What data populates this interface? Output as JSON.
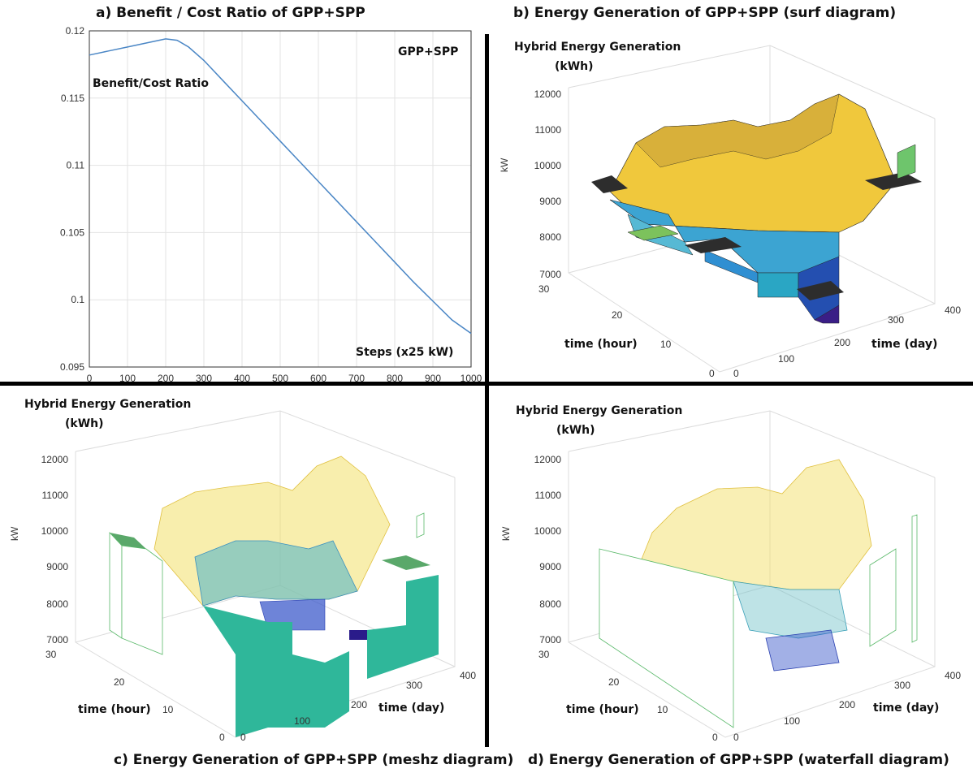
{
  "titles": {
    "a": "a) Benefit / Cost Ratio of GPP+SPP",
    "b": "b) Energy Generation of  GPP+SPP  (surf diagram)",
    "c": "c) Energy Generation of  GPP+SPP  (meshz diagram)",
    "d": "d) Energy Generation of  GPP+SPP  (waterfall diagram)"
  },
  "colors": {
    "line": "#4a86c5",
    "grid": "#e3e3e3",
    "yellow": "#f5d030",
    "green": "#5ab96a",
    "teal": "#2fb79a",
    "blue": "#2f6fd0",
    "navy": "#2a1b8a"
  },
  "chart_data": [
    {
      "id": "a",
      "type": "line",
      "legend_text": "GPP+SPP",
      "annotation": "Benefit/Cost Ratio",
      "xlabel": "Steps (x25 kW)",
      "xlim": [
        0,
        1000
      ],
      "ylim": [
        0.095,
        0.12
      ],
      "xticks": [
        "0",
        "100",
        "200",
        "300",
        "400",
        "500",
        "600",
        "700",
        "800",
        "900",
        "1000"
      ],
      "yticks": [
        "0.095",
        "0.1",
        "0.105",
        "0.11",
        "0.115",
        "0.12"
      ],
      "grid": true,
      "x": [
        0,
        50,
        100,
        150,
        200,
        230,
        260,
        300,
        350,
        400,
        450,
        500,
        550,
        600,
        650,
        700,
        750,
        800,
        850,
        900,
        950,
        1000
      ],
      "y": [
        0.1182,
        0.1185,
        0.1188,
        0.1191,
        0.1194,
        0.1193,
        0.1188,
        0.1178,
        0.1163,
        0.1148,
        0.1133,
        0.1118,
        0.1103,
        0.1088,
        0.1073,
        0.1058,
        0.1043,
        0.1028,
        0.1013,
        0.0999,
        0.0985,
        0.0975
      ]
    },
    {
      "id": "b",
      "type": "surface",
      "title": "Hybrid Energy Generation",
      "title2": "(kWh)",
      "zlabel": "kW",
      "ylabel": "time (hour)",
      "xlabel": "time (day)",
      "zticks": [
        "12000",
        "11000",
        "10000",
        "9000",
        "8000",
        "7000"
      ],
      "yticks": [
        "30",
        "20",
        "10",
        "0"
      ],
      "xticks": [
        "0",
        "100",
        "200",
        "300",
        "400"
      ]
    },
    {
      "id": "c",
      "type": "surface",
      "title": "Hybrid Energy Generation",
      "title2": "(kWh)",
      "zlabel": "kW",
      "ylabel": "time (hour)",
      "xlabel": "time (day)",
      "zticks": [
        "12000",
        "11000",
        "10000",
        "9000",
        "8000",
        "7000"
      ],
      "yticks": [
        "30",
        "20",
        "10",
        "0"
      ],
      "xticks": [
        "0",
        "100",
        "200",
        "300",
        "400"
      ]
    },
    {
      "id": "d",
      "type": "surface",
      "title": "Hybrid Energy Generation",
      "title2": "(kWh)",
      "zlabel": "kW",
      "ylabel": "time (hour)",
      "xlabel": "time (day)",
      "zticks": [
        "12000",
        "11000",
        "10000",
        "9000",
        "8000",
        "7000"
      ],
      "yticks": [
        "30",
        "20",
        "10",
        "0"
      ],
      "xticks": [
        "0",
        "100",
        "200",
        "300",
        "400"
      ]
    }
  ]
}
